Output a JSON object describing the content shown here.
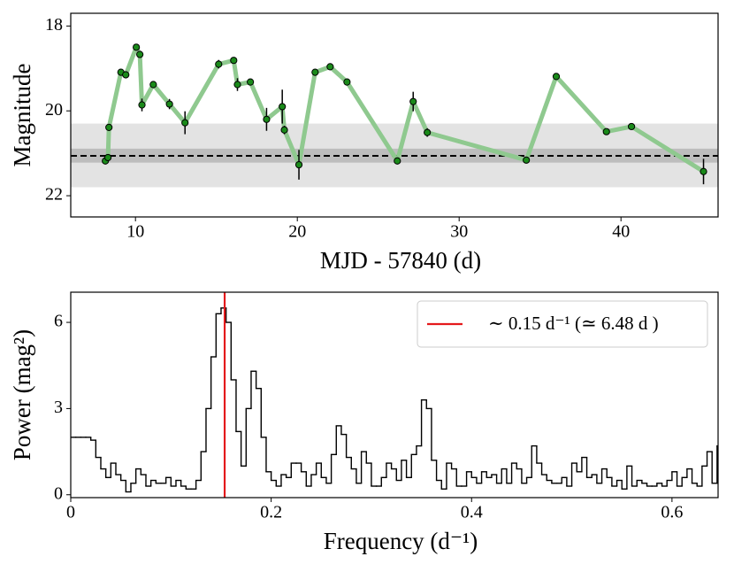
{
  "chart_data": [
    {
      "type": "scatter",
      "xlabel": "MJD - 57840 (d)",
      "ylabel": "Magnitude",
      "x": [
        8.14,
        8.3,
        8.36,
        9.1,
        9.4,
        10.05,
        10.27,
        10.4,
        11.1,
        12.1,
        13.06,
        15.14,
        16.07,
        16.3,
        17.1,
        18.1,
        19.07,
        19.2,
        20.1,
        21.1,
        22.03,
        23.07,
        26.18,
        27.16,
        28.03,
        34.15,
        36.0,
        39.1,
        40.65,
        45.1
      ],
      "values": [
        21.18,
        21.1,
        20.39,
        19.09,
        19.15,
        18.5,
        18.67,
        19.86,
        19.38,
        19.84,
        20.28,
        18.9,
        18.81,
        19.38,
        19.32,
        20.2,
        19.9,
        20.45,
        21.27,
        19.09,
        18.96,
        19.32,
        21.18,
        19.78,
        20.51,
        21.16,
        19.19,
        20.49,
        20.37,
        21.43
      ],
      "errors": [
        0.08,
        0.08,
        0.08,
        0.06,
        0.06,
        0.06,
        0.06,
        0.15,
        0.06,
        0.12,
        0.27,
        0.1,
        0.06,
        0.15,
        0.06,
        0.27,
        0.4,
        0.1,
        0.35,
        0.06,
        0.06,
        0.06,
        0.08,
        0.23,
        0.1,
        0.08,
        0.06,
        0.06,
        0.06,
        0.3
      ],
      "color": "#1a8a1a",
      "line_color": "#8fc98f",
      "hline": 21.06,
      "bands": [
        [
          20.3,
          21.8
        ],
        [
          20.89,
          21.22
        ]
      ],
      "xlim": [
        6,
        46
      ],
      "xticks": [
        10,
        20,
        30,
        40
      ],
      "ylim": [
        22.5,
        17.7
      ],
      "yticks": [
        18,
        20,
        22
      ]
    },
    {
      "type": "histogram",
      "xlabel": "Frequency (d⁻¹)",
      "ylabel": "Power (mag²)",
      "bins": [
        0,
        0.005,
        0.01,
        0.015,
        0.02,
        0.025,
        0.03,
        0.035,
        0.04,
        0.045,
        0.05,
        0.055,
        0.06,
        0.065,
        0.07,
        0.075,
        0.08,
        0.085,
        0.09,
        0.095,
        0.1,
        0.105,
        0.11,
        0.115,
        0.12,
        0.125,
        0.13,
        0.135,
        0.14,
        0.145,
        0.15,
        0.155,
        0.16,
        0.165,
        0.17,
        0.175,
        0.18,
        0.185,
        0.19,
        0.195,
        0.2,
        0.205,
        0.21,
        0.215,
        0.22,
        0.225,
        0.23,
        0.235,
        0.24,
        0.245,
        0.25,
        0.255,
        0.26,
        0.265,
        0.27,
        0.275,
        0.28,
        0.285,
        0.29,
        0.295,
        0.3,
        0.305,
        0.31,
        0.315,
        0.32,
        0.325,
        0.33,
        0.335,
        0.34,
        0.345,
        0.35,
        0.355,
        0.36,
        0.365,
        0.37,
        0.375,
        0.38,
        0.385,
        0.39,
        0.395,
        0.4,
        0.405,
        0.41,
        0.415,
        0.42,
        0.425,
        0.43,
        0.435,
        0.44,
        0.445,
        0.45,
        0.455,
        0.46,
        0.465,
        0.47,
        0.475,
        0.48,
        0.485,
        0.49,
        0.495,
        0.5,
        0.505,
        0.51,
        0.515,
        0.52,
        0.525,
        0.53,
        0.535,
        0.54,
        0.545,
        0.55,
        0.555,
        0.56,
        0.565,
        0.57,
        0.575,
        0.58,
        0.585,
        0.59,
        0.595,
        0.6,
        0.605,
        0.61,
        0.615,
        0.62,
        0.625,
        0.63,
        0.635,
        0.64,
        0.645,
        0.65
      ],
      "values": [
        2.0,
        2.0,
        2.0,
        2.0,
        1.9,
        1.3,
        0.9,
        0.6,
        1.1,
        0.7,
        0.5,
        0.1,
        0.4,
        0.9,
        0.7,
        0.3,
        0.5,
        0.4,
        0.4,
        0.6,
        0.3,
        0.5,
        0.3,
        0.2,
        0.2,
        0.5,
        1.5,
        3.0,
        4.8,
        6.3,
        6.5,
        6.0,
        4.0,
        2.2,
        1.0,
        3.0,
        4.3,
        3.7,
        2.0,
        0.8,
        0.5,
        0.3,
        0.7,
        0.6,
        1.1,
        1.1,
        0.8,
        0.3,
        0.7,
        1.1,
        0.6,
        0.4,
        1.4,
        2.4,
        2.1,
        1.3,
        0.9,
        0.4,
        1.5,
        1.1,
        0.3,
        0.3,
        0.6,
        1.1,
        0.9,
        0.5,
        1.2,
        0.6,
        1.4,
        1.7,
        3.3,
        3.0,
        1.2,
        0.5,
        0.2,
        1.1,
        0.9,
        0.3,
        0.3,
        0.8,
        0.6,
        0.4,
        0.8,
        0.6,
        0.7,
        0.4,
        0.9,
        0.4,
        1.1,
        0.9,
        0.4,
        0.6,
        1.7,
        1.1,
        0.7,
        0.5,
        0.4,
        0.4,
        0.6,
        0.3,
        1.1,
        0.8,
        1.3,
        0.6,
        0.7,
        0.4,
        0.9,
        0.6,
        0.3,
        0.5,
        0.2,
        1.0,
        0.3,
        0.5,
        0.4,
        0.3,
        0.3,
        0.4,
        0.3,
        0.5,
        0.8,
        0.3,
        0.6,
        0.9,
        0.4,
        0.3,
        1.0,
        1.5,
        0.4,
        1.7
      ],
      "color": "#000000",
      "vline": {
        "value": 0.1536,
        "color": "#e41a1c",
        "label": "∼ 0.15 d⁻¹ (≃ 6.48 d )"
      },
      "legend": "upper right",
      "xlim": [
        0,
        0.646
      ],
      "xticks": [
        0,
        0.2,
        0.4,
        0.6
      ],
      "ylim": [
        -0.1,
        7.05
      ],
      "yticks": [
        0,
        3,
        6
      ]
    }
  ]
}
